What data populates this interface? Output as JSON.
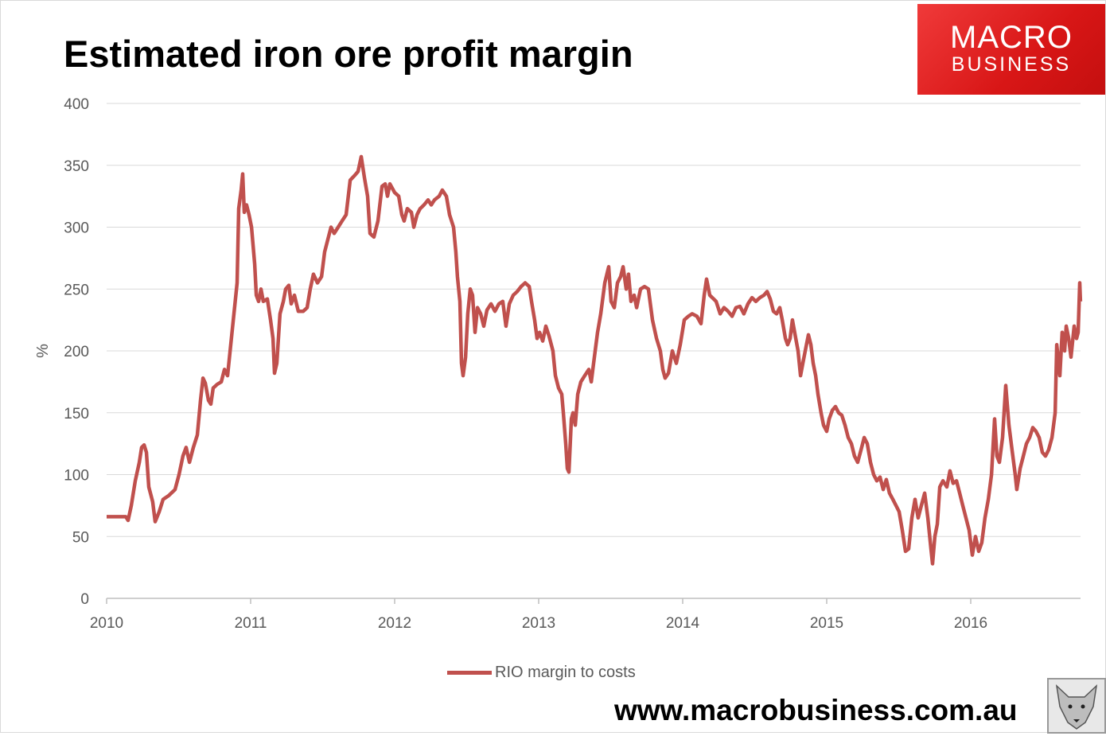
{
  "chart_data": {
    "type": "line",
    "title": "Estimated iron ore profit margin",
    "xlabel": "",
    "ylabel": "%",
    "ylim": [
      0,
      400
    ],
    "xlim": [
      2010,
      2016.76
    ],
    "yticks": [
      "0",
      "50",
      "100",
      "150",
      "200",
      "250",
      "300",
      "350",
      "400"
    ],
    "xticks": [
      "2010",
      "2011",
      "2012",
      "2013",
      "2014",
      "2015",
      "2016"
    ],
    "grid": true,
    "legend_position": "bottom",
    "color": "#c0504d",
    "series": [
      {
        "name": "RIO margin to costs",
        "x": [
          2010.0,
          2010.133,
          2010.149,
          2010.171,
          2010.199,
          2010.227,
          2010.243,
          2010.26,
          2010.276,
          2010.293,
          2010.32,
          2010.337,
          2010.365,
          2010.392,
          2010.431,
          2010.475,
          2010.503,
          2010.53,
          2010.552,
          2010.575,
          2010.602,
          2010.63,
          2010.652,
          2010.669,
          2010.685,
          2010.707,
          2010.724,
          2010.74,
          2010.768,
          2010.796,
          2010.818,
          2010.84,
          2010.862,
          2010.884,
          2010.906,
          2010.917,
          2010.934,
          2010.945,
          2010.956,
          2010.972,
          2010.989,
          2011.006,
          2011.028,
          2011.039,
          2011.055,
          2011.072,
          2011.088,
          2011.116,
          2011.138,
          2011.155,
          2011.166,
          2011.182,
          2011.204,
          2011.227,
          2011.243,
          2011.265,
          2011.282,
          2011.304,
          2011.331,
          2011.365,
          2011.392,
          2011.414,
          2011.436,
          2011.464,
          2011.492,
          2011.514,
          2011.536,
          2011.558,
          2011.58,
          2011.608,
          2011.635,
          2011.663,
          2011.691,
          2011.724,
          2011.746,
          2011.768,
          2011.79,
          2011.812,
          2011.829,
          2011.856,
          2011.884,
          2011.912,
          2011.934,
          2011.95,
          2011.967,
          2012.0,
          2012.028,
          2012.05,
          2012.066,
          2012.088,
          2012.116,
          2012.133,
          2012.155,
          2012.177,
          2012.204,
          2012.232,
          2012.254,
          2012.276,
          2012.309,
          2012.331,
          2012.359,
          2012.381,
          2012.409,
          2012.425,
          2012.436,
          2012.453,
          2012.464,
          2012.475,
          2012.492,
          2012.508,
          2012.525,
          2012.541,
          2012.558,
          2012.575,
          2012.597,
          2012.619,
          2012.641,
          2012.669,
          2012.696,
          2012.724,
          2012.751,
          2012.773,
          2012.796,
          2012.823,
          2012.851,
          2012.878,
          2012.906,
          2012.934,
          2012.95,
          2012.972,
          2012.989,
          2013.006,
          2013.028,
          2013.05,
          2013.072,
          2013.099,
          2013.116,
          2013.138,
          2013.16,
          2013.171,
          2013.188,
          2013.199,
          2013.21,
          2013.227,
          2013.238,
          2013.254,
          2013.271,
          2013.293,
          2013.32,
          2013.348,
          2013.365,
          2013.387,
          2013.409,
          2013.431,
          2013.459,
          2013.486,
          2013.503,
          2013.525,
          2013.547,
          2013.569,
          2013.586,
          2013.608,
          2013.624,
          2013.641,
          2013.663,
          2013.68,
          2013.707,
          2013.735,
          2013.762,
          2013.79,
          2013.818,
          2013.845,
          2013.862,
          2013.878,
          2013.901,
          2013.928,
          2013.956,
          2013.983,
          2014.011,
          2014.039,
          2014.066,
          2014.099,
          2014.127,
          2014.149,
          2014.166,
          2014.188,
          2014.215,
          2014.232,
          2014.26,
          2014.287,
          2014.315,
          2014.343,
          2014.37,
          2014.398,
          2014.425,
          2014.453,
          2014.481,
          2014.508,
          2014.536,
          2014.564,
          2014.586,
          2014.608,
          2014.63,
          2014.652,
          2014.674,
          2014.691,
          2014.713,
          2014.729,
          2014.746,
          2014.762,
          2014.785,
          2014.801,
          2014.818,
          2014.834,
          2014.851,
          2014.873,
          2014.89,
          2014.906,
          2014.923,
          2014.939,
          2014.961,
          2014.978,
          2015.0,
          2015.017,
          2015.039,
          2015.061,
          2015.083,
          2015.105,
          2015.127,
          2015.149,
          2015.171,
          2015.193,
          2015.215,
          2015.238,
          2015.26,
          2015.282,
          2015.304,
          2015.326,
          2015.348,
          2015.37,
          2015.392,
          2015.414,
          2015.436,
          2015.459,
          2015.481,
          2015.503,
          2015.525,
          2015.547,
          2015.569,
          2015.591,
          2015.613,
          2015.635,
          2015.657,
          2015.68,
          2015.702,
          2015.724,
          2015.735,
          2015.751,
          2015.768,
          2015.785,
          2015.807,
          2015.834,
          2015.856,
          2015.878,
          2015.901,
          2015.923,
          2015.945,
          2015.967,
          2015.989,
          2016.011,
          2016.033,
          2016.055,
          2016.077,
          2016.099,
          2016.122,
          2016.144,
          2016.166,
          2016.182,
          2016.199,
          2016.221,
          2016.243,
          2016.265,
          2016.287,
          2016.309,
          2016.32,
          2016.343,
          2016.365,
          2016.387,
          2016.409,
          2016.431,
          2016.453,
          2016.475,
          2016.497,
          2016.519,
          2016.541,
          2016.564,
          2016.586,
          2016.597,
          2016.619,
          2016.635,
          2016.652,
          2016.663,
          2016.68,
          2016.696,
          2016.718,
          2016.735,
          2016.746,
          2016.757,
          2016.762
        ],
        "values": [
          66,
          66,
          63,
          75,
          95,
          110,
          122,
          124,
          118,
          90,
          78,
          62,
          70,
          80,
          83,
          88,
          100,
          115,
          122,
          110,
          122,
          132,
          160,
          178,
          174,
          160,
          157,
          170,
          173,
          175,
          185,
          180,
          205,
          230,
          255,
          315,
          330,
          343,
          312,
          318,
          310,
          300,
          270,
          245,
          240,
          250,
          240,
          242,
          225,
          210,
          182,
          190,
          230,
          240,
          250,
          253,
          238,
          245,
          232,
          232,
          235,
          250,
          262,
          255,
          260,
          280,
          290,
          300,
          295,
          300,
          305,
          310,
          338,
          342,
          345,
          357,
          340,
          325,
          295,
          292,
          305,
          333,
          335,
          325,
          335,
          328,
          325,
          310,
          305,
          315,
          312,
          300,
          310,
          315,
          318,
          322,
          318,
          322,
          325,
          330,
          325,
          310,
          300,
          280,
          260,
          240,
          190,
          180,
          195,
          230,
          250,
          245,
          215,
          235,
          230,
          220,
          233,
          238,
          232,
          238,
          240,
          220,
          238,
          245,
          248,
          252,
          255,
          252,
          240,
          225,
          210,
          215,
          208,
          220,
          212,
          200,
          180,
          170,
          165,
          150,
          125,
          105,
          102,
          145,
          150,
          140,
          165,
          175,
          180,
          185,
          175,
          195,
          215,
          230,
          255,
          268,
          240,
          235,
          255,
          260,
          268,
          250,
          262,
          240,
          245,
          235,
          250,
          252,
          250,
          225,
          210,
          200,
          185,
          178,
          182,
          200,
          190,
          205,
          225,
          228,
          230,
          228,
          222,
          245,
          258,
          245,
          242,
          240,
          230,
          235,
          232,
          228,
          235,
          236,
          230,
          238,
          243,
          240,
          243,
          245,
          248,
          242,
          232,
          230,
          235,
          225,
          210,
          205,
          210,
          225,
          210,
          200,
          180,
          190,
          200,
          213,
          205,
          190,
          180,
          165,
          150,
          140,
          135,
          145,
          152,
          155,
          150,
          148,
          140,
          130,
          125,
          115,
          110,
          120,
          130,
          125,
          110,
          100,
          95,
          98,
          88,
          96,
          85,
          80,
          75,
          70,
          55,
          38,
          40,
          65,
          80,
          65,
          75,
          85,
          65,
          40,
          28,
          50,
          60,
          90,
          95,
          90,
          103,
          93,
          95,
          85,
          75,
          65,
          55,
          35,
          50,
          38,
          45,
          65,
          80,
          100,
          145,
          115,
          110,
          130,
          172,
          140,
          120,
          100,
          88,
          105,
          115,
          125,
          130,
          138,
          135,
          130,
          118,
          115,
          120,
          130,
          150,
          205,
          180,
          215,
          200,
          220,
          210,
          195,
          220,
          210,
          215,
          255,
          240
        ]
      }
    ]
  },
  "header": {
    "title": "Estimated iron ore profit margin"
  },
  "logo": {
    "line1": "MACRO",
    "line2": "BUSINESS"
  },
  "footer": {
    "url": "www.macrobusiness.com.au"
  },
  "icons": {
    "mascot": "wolf-icon"
  }
}
